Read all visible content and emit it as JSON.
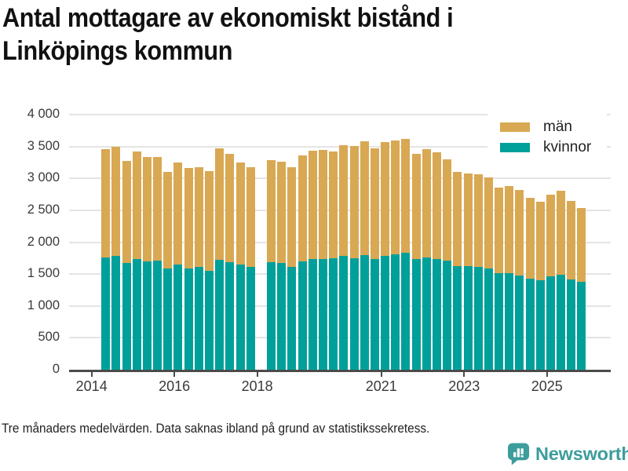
{
  "header": {
    "title": "Antal mottagare av ekonomiskt bistånd i\nLinköpings kommun"
  },
  "legend": {
    "items": [
      {
        "label": "män",
        "color": "#D9A853"
      },
      {
        "label": "kvinnor",
        "color": "#00A09A"
      }
    ]
  },
  "footer": {
    "note": "Tre månaders medelvärden. Data saknas ibland på grund av statistikssekretess.",
    "brand": "Newsworthy"
  },
  "colors": {
    "man_bar": "#D9A853",
    "kvinnor_bar": "#00A09A",
    "gridline": "#E4E4E4",
    "axis": "#4B4B4B",
    "logo_teal": "#3D9D9C"
  },
  "chart_data": {
    "type": "bar",
    "stacked": true,
    "title": "Antal mottagare av ekonomiskt bistånd i Linköpings kommun",
    "note": "Tre månaders medelvärden. Data saknas ibland på grund av statistikssekretess.",
    "legend_position": "top-right",
    "grid": true,
    "categories": [
      "2014 Q2",
      "2014 Q3",
      "2014 Q4",
      "2015 Q1",
      "2015 Q2",
      "2015 Q3",
      "2015 Q4",
      "2016 Q1",
      "2016 Q2",
      "2016 Q3",
      "2016 Q4",
      "2017 Q1",
      "2017 Q2",
      "2017 Q3",
      "2017 Q4",
      "2018 Q1",
      "2018 Q2",
      "2018 Q3",
      "2018 Q4",
      "2019 Q1",
      "2019 Q2",
      "2019 Q3",
      "2019 Q4",
      "2020 Q1",
      "2020 Q2",
      "2020 Q3",
      "2020 Q4",
      "2021 Q1",
      "2021 Q2",
      "2021 Q3",
      "2021 Q4",
      "2022 Q1",
      "2022 Q2",
      "2022 Q3",
      "2022 Q4",
      "2023 Q1",
      "2023 Q2",
      "2023 Q3",
      "2023 Q4",
      "2024 Q1",
      "2024 Q2",
      "2024 Q3",
      "2024 Q4",
      "2025 Q1",
      "2025 Q2",
      "2025 Q3",
      "2025 Q4"
    ],
    "series": [
      {
        "name": "kvinnor",
        "color": "#00A09A",
        "values": [
          1760,
          1790,
          1670,
          1740,
          1700,
          1710,
          1590,
          1650,
          1590,
          1610,
          1550,
          1720,
          1690,
          1650,
          1610,
          null,
          1690,
          1670,
          1610,
          1700,
          1730,
          1740,
          1750,
          1780,
          1750,
          1800,
          1730,
          1790,
          1810,
          1840,
          1740,
          1760,
          1740,
          1710,
          1620,
          1620,
          1610,
          1590,
          1510,
          1520,
          1480,
          1430,
          1400,
          1470,
          1490,
          1410,
          1380
        ]
      },
      {
        "name": "män",
        "color": "#D9A853",
        "values": [
          1700,
          1710,
          1600,
          1680,
          1640,
          1620,
          1510,
          1600,
          1570,
          1560,
          1560,
          1750,
          1690,
          1600,
          1570,
          null,
          1600,
          1590,
          1560,
          1660,
          1710,
          1710,
          1670,
          1740,
          1760,
          1780,
          1740,
          1780,
          1780,
          1780,
          1650,
          1700,
          1670,
          1590,
          1480,
          1460,
          1460,
          1420,
          1350,
          1360,
          1340,
          1260,
          1240,
          1270,
          1320,
          1240,
          1160
        ]
      }
    ],
    "missing_periods": [
      "2018 Q1"
    ],
    "x_axis": {
      "ticks": [
        2014,
        2016,
        2018,
        2021,
        2023,
        2025
      ]
    },
    "y_axis": {
      "min": 0,
      "max": 4000,
      "step": 500,
      "tick_labels": [
        "0",
        "500",
        "1 000",
        "1 500",
        "2 000",
        "2 500",
        "3 000",
        "3 500",
        "4 000"
      ]
    }
  }
}
